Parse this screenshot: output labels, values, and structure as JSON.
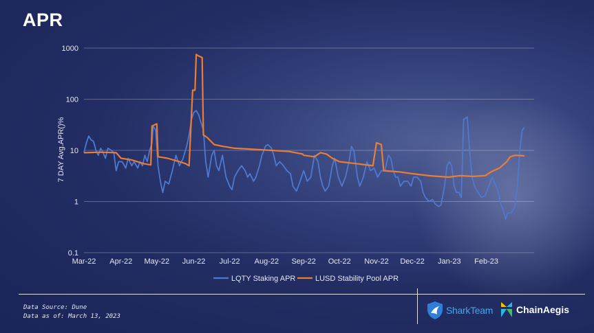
{
  "header": {
    "title": "APR"
  },
  "footer": {
    "source": "Data Source: Dune",
    "asof": "Data as of: March 13, 2023",
    "logo1": "SharkTeam",
    "logo2": "ChainAegis"
  },
  "colors": {
    "lqty": "#4f79cf",
    "lusd": "#ed7d31"
  },
  "chart_data": {
    "type": "line",
    "title": "",
    "xlabel": "",
    "ylabel": "7 DAY Avg.APR()%",
    "yscale": "log",
    "ylim": [
      0.1,
      1000
    ],
    "y_ticks": [
      "0.1",
      "1",
      "10",
      "100",
      "1000"
    ],
    "xlim": [
      "2022-03-01",
      "2023-03-13"
    ],
    "x_ticks": [
      {
        "label": "Mar-22",
        "date": "2022-03-01"
      },
      {
        "label": "Apr-22",
        "date": "2022-04-01"
      },
      {
        "label": "May-22",
        "date": "2022-05-01"
      },
      {
        "label": "Jun-22",
        "date": "2022-06-01"
      },
      {
        "label": "Jul-22",
        "date": "2022-07-01"
      },
      {
        "label": "Aug-22",
        "date": "2022-08-01"
      },
      {
        "label": "Sep-22",
        "date": "2022-09-01"
      },
      {
        "label": "Oct-22",
        "date": "2022-10-01"
      },
      {
        "label": "Nov-22",
        "date": "2022-11-01"
      },
      {
        "label": "Dec-22",
        "date": "2022-12-01"
      },
      {
        "label": "Jan-23",
        "date": "2023-01-01"
      },
      {
        "label": "Feb-23",
        "date": "2023-02-01"
      }
    ],
    "grid": true,
    "legend_position": "bottom",
    "series": [
      {
        "name": "LQTY Staking APR",
        "points": [
          [
            "2022-03-01",
            9
          ],
          [
            "2022-03-03",
            14
          ],
          [
            "2022-03-05",
            19
          ],
          [
            "2022-03-07",
            16
          ],
          [
            "2022-03-09",
            15
          ],
          [
            "2022-03-11",
            10
          ],
          [
            "2022-03-13",
            8
          ],
          [
            "2022-03-15",
            11
          ],
          [
            "2022-03-17",
            9
          ],
          [
            "2022-03-19",
            7
          ],
          [
            "2022-03-21",
            11
          ],
          [
            "2022-03-24",
            10
          ],
          [
            "2022-03-26",
            9
          ],
          [
            "2022-03-28",
            4
          ],
          [
            "2022-03-30",
            6
          ],
          [
            "2022-04-02",
            6
          ],
          [
            "2022-04-05",
            4.5
          ],
          [
            "2022-04-07",
            7
          ],
          [
            "2022-04-10",
            5
          ],
          [
            "2022-04-12",
            6
          ],
          [
            "2022-04-15",
            4.5
          ],
          [
            "2022-04-17",
            6
          ],
          [
            "2022-04-19",
            5
          ],
          [
            "2022-04-21",
            8
          ],
          [
            "2022-04-23",
            6
          ],
          [
            "2022-04-25",
            10
          ],
          [
            "2022-04-27",
            14
          ],
          [
            "2022-04-28",
            30
          ],
          [
            "2022-04-30",
            25
          ],
          [
            "2022-05-02",
            5
          ],
          [
            "2022-05-04",
            2.5
          ],
          [
            "2022-05-06",
            1.5
          ],
          [
            "2022-05-08",
            2.5
          ],
          [
            "2022-05-11",
            2.2
          ],
          [
            "2022-05-14",
            4
          ],
          [
            "2022-05-17",
            8
          ],
          [
            "2022-05-20",
            5
          ],
          [
            "2022-05-23",
            7
          ],
          [
            "2022-05-26",
            12
          ],
          [
            "2022-05-28",
            20
          ],
          [
            "2022-05-30",
            40
          ],
          [
            "2022-06-01",
            55
          ],
          [
            "2022-06-03",
            60
          ],
          [
            "2022-06-05",
            50
          ],
          [
            "2022-06-07",
            35
          ],
          [
            "2022-06-09",
            25
          ],
          [
            "2022-06-11",
            6
          ],
          [
            "2022-06-13",
            3
          ],
          [
            "2022-06-16",
            8
          ],
          [
            "2022-06-18",
            10
          ],
          [
            "2022-06-20",
            5
          ],
          [
            "2022-06-22",
            4
          ],
          [
            "2022-06-25",
            8
          ],
          [
            "2022-06-28",
            3
          ],
          [
            "2022-07-01",
            2
          ],
          [
            "2022-07-03",
            1.7
          ],
          [
            "2022-07-05",
            3
          ],
          [
            "2022-07-08",
            4
          ],
          [
            "2022-07-11",
            5
          ],
          [
            "2022-07-14",
            4
          ],
          [
            "2022-07-16",
            3
          ],
          [
            "2022-07-18",
            3.5
          ],
          [
            "2022-07-21",
            2.5
          ],
          [
            "2022-07-23",
            3
          ],
          [
            "2022-07-26",
            5
          ],
          [
            "2022-07-28",
            8
          ],
          [
            "2022-07-31",
            12
          ],
          [
            "2022-08-02",
            13
          ],
          [
            "2022-08-05",
            11
          ],
          [
            "2022-08-07",
            8
          ],
          [
            "2022-08-09",
            5
          ],
          [
            "2022-08-12",
            6
          ],
          [
            "2022-08-15",
            5
          ],
          [
            "2022-08-18",
            4
          ],
          [
            "2022-08-21",
            3.5
          ],
          [
            "2022-08-23",
            2
          ],
          [
            "2022-08-26",
            1.6
          ],
          [
            "2022-08-29",
            2.5
          ],
          [
            "2022-09-01",
            4
          ],
          [
            "2022-09-04",
            2.5
          ],
          [
            "2022-09-07",
            3
          ],
          [
            "2022-09-10",
            8
          ],
          [
            "2022-09-13",
            6
          ],
          [
            "2022-09-15",
            3
          ],
          [
            "2022-09-17",
            2
          ],
          [
            "2022-09-19",
            1.6
          ],
          [
            "2022-09-22",
            2
          ],
          [
            "2022-09-25",
            5
          ],
          [
            "2022-09-27",
            7
          ],
          [
            "2022-09-30",
            3
          ],
          [
            "2022-10-03",
            2
          ],
          [
            "2022-10-06",
            3
          ],
          [
            "2022-10-09",
            6
          ],
          [
            "2022-10-11",
            12
          ],
          [
            "2022-10-13",
            10
          ],
          [
            "2022-10-16",
            3
          ],
          [
            "2022-10-18",
            2
          ],
          [
            "2022-10-21",
            3
          ],
          [
            "2022-10-24",
            6
          ],
          [
            "2022-10-27",
            4
          ],
          [
            "2022-10-30",
            4.5
          ],
          [
            "2022-11-02",
            3
          ],
          [
            "2022-11-05",
            4
          ],
          [
            "2022-11-08",
            4
          ],
          [
            "2022-11-11",
            8
          ],
          [
            "2022-11-13",
            7
          ],
          [
            "2022-11-15",
            4
          ],
          [
            "2022-11-17",
            3
          ],
          [
            "2022-11-19",
            3
          ],
          [
            "2022-11-21",
            2
          ],
          [
            "2022-11-24",
            2.5
          ],
          [
            "2022-11-27",
            2.5
          ],
          [
            "2022-11-30",
            2
          ],
          [
            "2022-12-02",
            3
          ],
          [
            "2022-12-05",
            3
          ],
          [
            "2022-12-08",
            2.5
          ],
          [
            "2022-12-10",
            1.5
          ],
          [
            "2022-12-12",
            1.2
          ],
          [
            "2022-12-15",
            1
          ],
          [
            "2022-12-18",
            1.1
          ],
          [
            "2022-12-20",
            0.9
          ],
          [
            "2022-12-23",
            0.8
          ],
          [
            "2022-12-25",
            0.85
          ],
          [
            "2022-12-28",
            2
          ],
          [
            "2022-12-30",
            5
          ],
          [
            "2023-01-01",
            6
          ],
          [
            "2023-01-03",
            5
          ],
          [
            "2023-01-05",
            2
          ],
          [
            "2023-01-07",
            1.5
          ],
          [
            "2023-01-09",
            1.5
          ],
          [
            "2023-01-11",
            1.2
          ],
          [
            "2023-01-13",
            40
          ],
          [
            "2023-01-16",
            45
          ],
          [
            "2023-01-18",
            10
          ],
          [
            "2023-01-20",
            3
          ],
          [
            "2023-01-22",
            2
          ],
          [
            "2023-01-25",
            1.5
          ],
          [
            "2023-01-28",
            1.2
          ],
          [
            "2023-01-31",
            1.3
          ],
          [
            "2023-02-03",
            2
          ],
          [
            "2023-02-06",
            3
          ],
          [
            "2023-02-09",
            2
          ],
          [
            "2023-02-11",
            1.5
          ],
          [
            "2023-02-13",
            0.9
          ],
          [
            "2023-02-15",
            0.7
          ],
          [
            "2023-02-17",
            0.45
          ],
          [
            "2023-02-19",
            0.6
          ],
          [
            "2023-02-22",
            0.6
          ],
          [
            "2023-02-25",
            0.8
          ],
          [
            "2023-02-27",
            2
          ],
          [
            "2023-03-01",
            10
          ],
          [
            "2023-03-03",
            25
          ],
          [
            "2023-03-05",
            28
          ]
        ]
      },
      {
        "name": "LUSD Stability Pool APR",
        "points": [
          [
            "2022-03-01",
            9
          ],
          [
            "2022-03-15",
            9.2
          ],
          [
            "2022-03-28",
            9
          ],
          [
            "2022-04-01",
            7
          ],
          [
            "2022-04-10",
            6.5
          ],
          [
            "2022-04-20",
            5.5
          ],
          [
            "2022-04-26",
            5.2
          ],
          [
            "2022-04-27",
            30
          ],
          [
            "2022-05-01",
            33
          ],
          [
            "2022-05-02",
            7.5
          ],
          [
            "2022-05-10",
            7
          ],
          [
            "2022-05-20",
            6
          ],
          [
            "2022-05-25",
            5.5
          ],
          [
            "2022-05-28",
            5
          ],
          [
            "2022-05-31",
            150
          ],
          [
            "2022-06-02",
            150
          ],
          [
            "2022-06-03",
            750
          ],
          [
            "2022-06-05",
            700
          ],
          [
            "2022-06-08",
            650
          ],
          [
            "2022-06-09",
            20
          ],
          [
            "2022-06-12",
            18
          ],
          [
            "2022-06-18",
            13
          ],
          [
            "2022-06-25",
            12
          ],
          [
            "2022-07-05",
            11
          ],
          [
            "2022-07-20",
            10.5
          ],
          [
            "2022-08-05",
            10
          ],
          [
            "2022-08-20",
            9.5
          ],
          [
            "2022-08-31",
            8.5
          ],
          [
            "2022-09-01",
            8
          ],
          [
            "2022-09-10",
            7.5
          ],
          [
            "2022-09-15",
            9
          ],
          [
            "2022-09-20",
            8.5
          ],
          [
            "2022-09-25",
            7
          ],
          [
            "2022-10-01",
            6
          ],
          [
            "2022-10-15",
            5.5
          ],
          [
            "2022-10-29",
            5
          ],
          [
            "2022-11-01",
            14
          ],
          [
            "2022-11-05",
            13
          ],
          [
            "2022-11-07",
            4
          ],
          [
            "2022-11-20",
            3.8
          ],
          [
            "2022-12-01",
            3.5
          ],
          [
            "2022-12-15",
            3.2
          ],
          [
            "2022-12-31",
            3
          ],
          [
            "2023-01-10",
            3.2
          ],
          [
            "2023-01-20",
            3.1
          ],
          [
            "2023-01-31",
            3.2
          ],
          [
            "2023-02-05",
            3.8
          ],
          [
            "2023-02-12",
            4.5
          ],
          [
            "2023-02-18",
            6
          ],
          [
            "2023-02-21",
            7.5
          ],
          [
            "2023-02-25",
            8
          ],
          [
            "2023-03-05",
            7.8
          ]
        ]
      }
    ]
  }
}
